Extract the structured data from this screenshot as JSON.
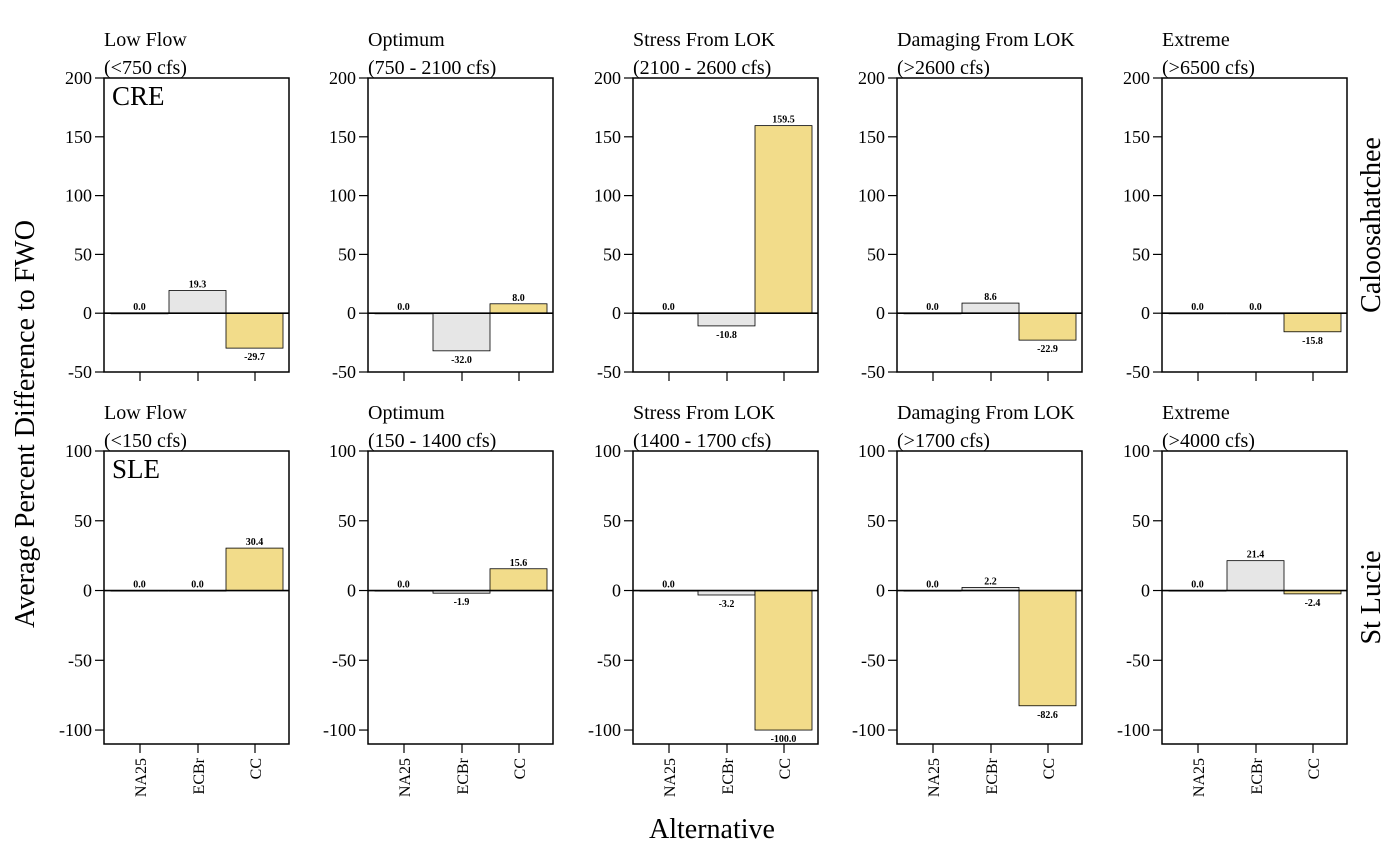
{
  "chart_data": {
    "type": "bar",
    "ylabel": "Average Percent Difference to FWO",
    "xlabel": "Alternative",
    "categories": [
      "NA25",
      "ECBr",
      "CC"
    ],
    "colors": [
      "#ffffff",
      "#e6e6e6",
      "#f2dc8a"
    ],
    "rows": [
      {
        "region_code": "CRE",
        "region_name": "Caloosahatchee",
        "ylim": [
          -50,
          200
        ],
        "yticks": [
          "200",
          "150",
          "100",
          "50",
          "0",
          "-50"
        ],
        "panels": [
          {
            "title1": "Low Flow",
            "title2": "(<750 cfs)",
            "values": [
              0.0,
              19.3,
              -29.7
            ],
            "labels": [
              "0.0",
              "19.3",
              "-29.7"
            ]
          },
          {
            "title1": "Optimum",
            "title2": "(750 - 2100 cfs)",
            "values": [
              0.0,
              -32.0,
              8.0
            ],
            "labels": [
              "0.0",
              "-32.0",
              "8.0"
            ]
          },
          {
            "title1": "Stress From LOK",
            "title2": "(2100 - 2600 cfs)",
            "values": [
              0.0,
              -10.8,
              159.5
            ],
            "labels": [
              "0.0",
              "-10.8",
              "159.5"
            ]
          },
          {
            "title1": "Damaging From LOK",
            "title2": "(>2600 cfs)",
            "values": [
              0.0,
              8.6,
              -22.9
            ],
            "labels": [
              "0.0",
              "8.6",
              "-22.9"
            ]
          },
          {
            "title1": "Extreme",
            "title2": "(>6500 cfs)",
            "values": [
              0.0,
              0.0,
              -15.8
            ],
            "labels": [
              "0.0",
              "0.0",
              "-15.8"
            ]
          }
        ]
      },
      {
        "region_code": "SLE",
        "region_name": "St Lucie",
        "ylim": [
          -110,
          100
        ],
        "yticks": [
          "100",
          "50",
          "0",
          "-50",
          "-100"
        ],
        "panels": [
          {
            "title1": "Low Flow",
            "title2": "(<150 cfs)",
            "values": [
              0.0,
              0.0,
              30.4
            ],
            "labels": [
              "0.0",
              "0.0",
              "30.4"
            ]
          },
          {
            "title1": "Optimum",
            "title2": "(150 - 1400 cfs)",
            "values": [
              0.0,
              -1.9,
              15.6
            ],
            "labels": [
              "0.0",
              "-1.9",
              "15.6"
            ]
          },
          {
            "title1": "Stress From LOK",
            "title2": "(1400 - 1700 cfs)",
            "values": [
              0.0,
              -3.2,
              -100.0
            ],
            "labels": [
              "0.0",
              "-3.2",
              "-100.0"
            ]
          },
          {
            "title1": "Damaging From LOK",
            "title2": "(>1700 cfs)",
            "values": [
              0.0,
              2.2,
              -82.6
            ],
            "labels": [
              "0.0",
              "2.2",
              "-82.6"
            ]
          },
          {
            "title1": "Extreme",
            "title2": "(>4000 cfs)",
            "values": [
              0.0,
              21.4,
              -2.4
            ],
            "labels": [
              "0.0",
              "21.4",
              "-2.4"
            ]
          }
        ]
      }
    ]
  }
}
